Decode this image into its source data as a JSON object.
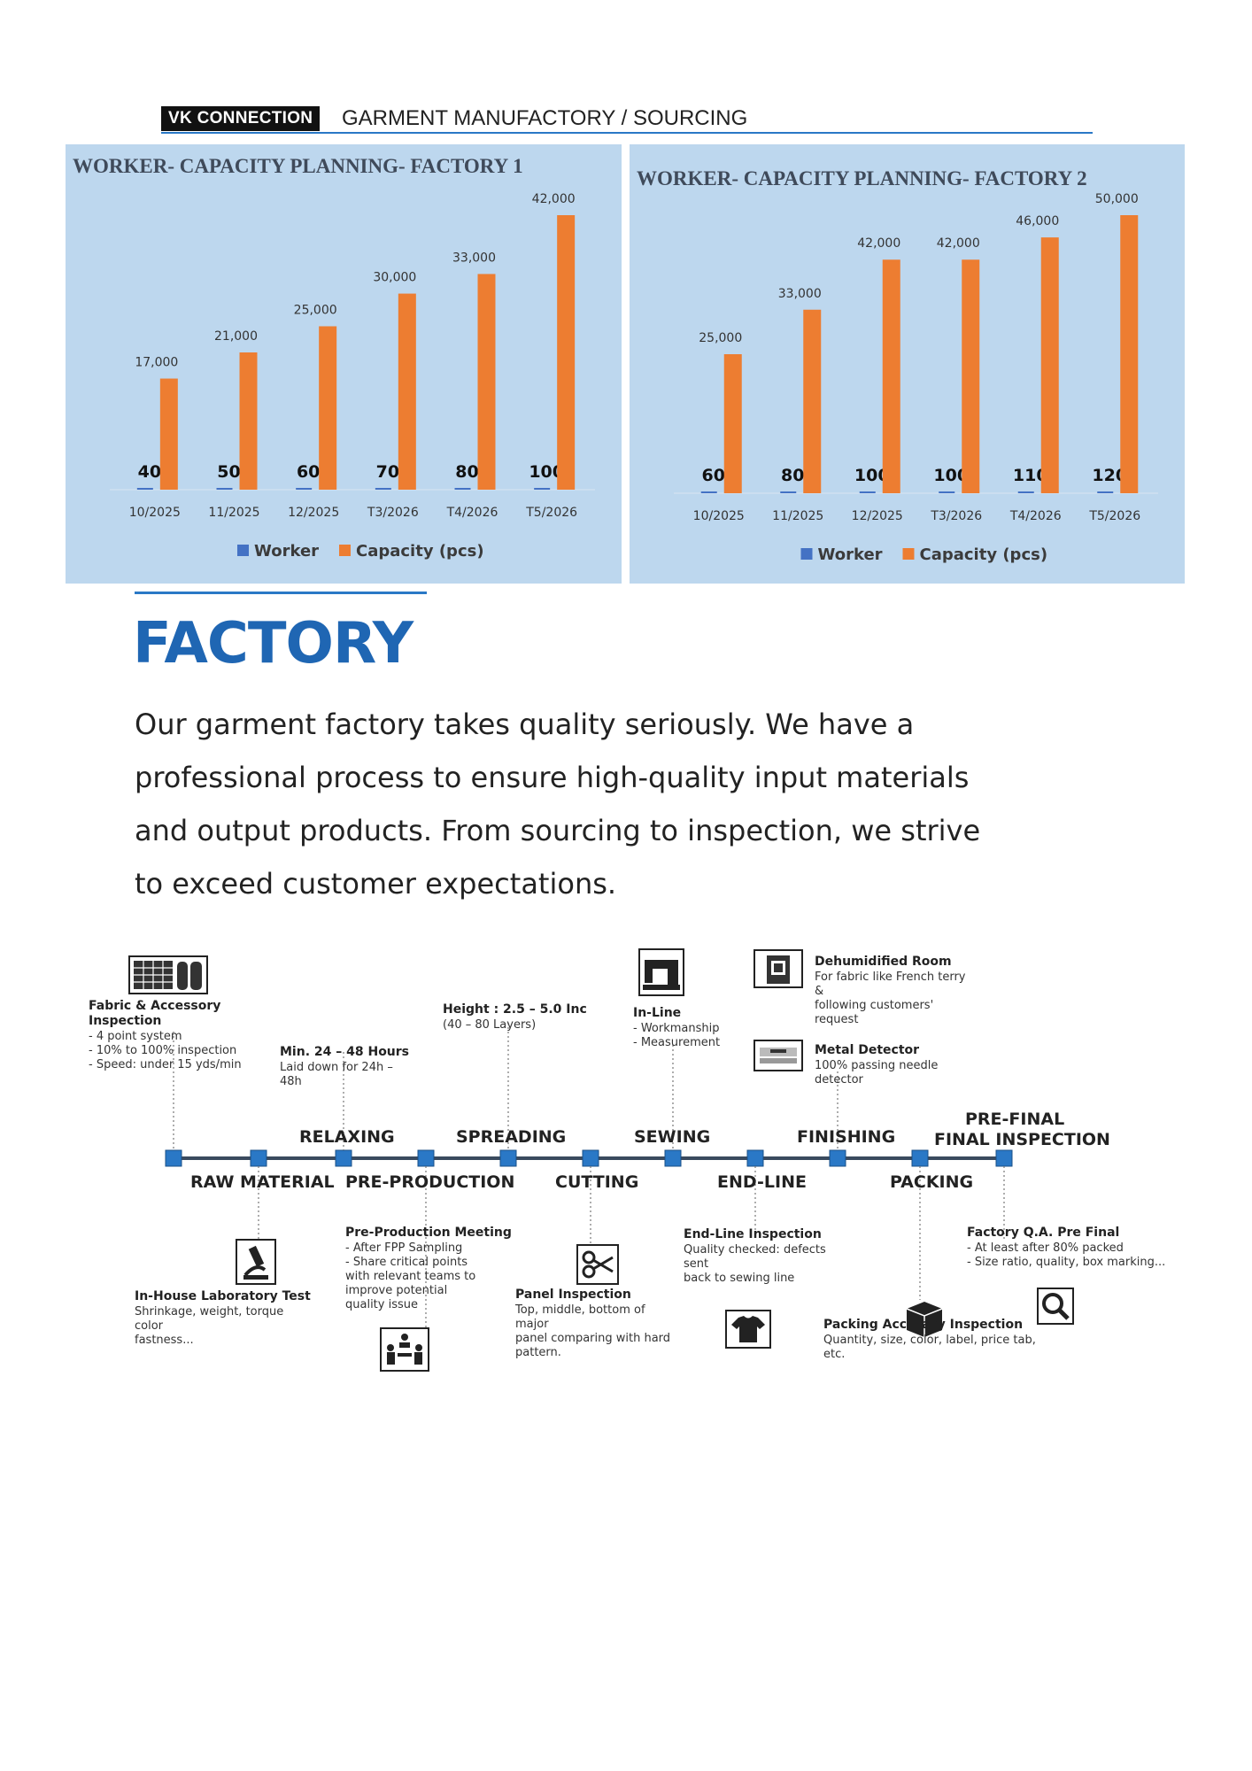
{
  "header": {
    "brand": "VK CONNECTION",
    "subtitle": "GARMENT MANUFACTORY / SOURCING"
  },
  "chart_data": [
    {
      "type": "bar",
      "title": "WORKER- CAPACITY PLANNING- FACTORY 1",
      "categories": [
        "10/2025",
        "11/2025",
        "12/2025",
        "T3/2026",
        "T4/2026",
        "T5/2026"
      ],
      "series": [
        {
          "name": "Worker",
          "values": [
            40,
            50,
            60,
            70,
            80,
            100
          ],
          "labels": [
            "40",
            "50",
            "60",
            "70",
            "80",
            "100"
          ],
          "color": "#4472c4"
        },
        {
          "name": "Capacity (pcs)",
          "values": [
            17000,
            21000,
            25000,
            30000,
            33000,
            42000
          ],
          "labels": [
            "17,000",
            "21,000",
            "25,000",
            "30,000",
            "33,000",
            "42,000"
          ],
          "color": "#ed7d31"
        }
      ],
      "ylim": [
        0,
        42000
      ],
      "legend": "bottom",
      "grid": false
    },
    {
      "type": "bar",
      "title": "WORKER- CAPACITY PLANNING- FACTORY 2",
      "categories": [
        "10/2025",
        "11/2025",
        "12/2025",
        "T3/2026",
        "T4/2026",
        "T5/2026"
      ],
      "series": [
        {
          "name": "Worker",
          "values": [
            60,
            80,
            100,
            100,
            110,
            120
          ],
          "labels": [
            "60",
            "80",
            "100",
            "100",
            "110",
            "120"
          ],
          "color": "#4472c4"
        },
        {
          "name": "Capacity (pcs)",
          "values": [
            25000,
            33000,
            42000,
            42000,
            46000,
            50000
          ],
          "labels": [
            "25,000",
            "33,000",
            "42,000",
            "42,000",
            "46,000",
            "50,000"
          ],
          "color": "#ed7d31"
        }
      ],
      "ylim": [
        0,
        50000
      ],
      "legend": "bottom",
      "grid": false
    }
  ],
  "factory": {
    "heading": "FACTORY",
    "intro_lines": [
      "Our garment factory takes quality seriously. We have a",
      "professional process to ensure high-quality input materials",
      "and output products. From sourcing to inspection, we strive",
      "to exceed customer expectations."
    ]
  },
  "process": {
    "stages_above": [
      {
        "label": "RELAXING"
      },
      {
        "label": "SPREADING"
      },
      {
        "label": "SEWING"
      },
      {
        "label": "FINISHING"
      },
      {
        "label": "PRE-FINAL"
      }
    ],
    "stages_below": [
      {
        "label": "RAW MATERIAL"
      },
      {
        "label": "PRE-PRODUCTION"
      },
      {
        "label": "CUTTING"
      },
      {
        "label": "END-LINE"
      },
      {
        "label": "PACKING"
      }
    ],
    "final_label": "FINAL INSPECTION",
    "notes": [
      {
        "id": "fabric",
        "title": [
          "Fabric & Accessory",
          "Inspection"
        ],
        "lines": [
          "- 4 point system",
          "- 10% to 100% inspection",
          "- Speed: under 15 yds/min"
        ],
        "icon": "fabric-rolls-icon"
      },
      {
        "id": "relax",
        "title": [
          "Min. 24 – 48 Hours"
        ],
        "lines": [
          "Laid down for 24h –",
          "48h"
        ]
      },
      {
        "id": "spread",
        "title": [
          "Height : 2.5 – 5.0 Inc"
        ],
        "lines": [
          "(40 – 80 Layers)"
        ]
      },
      {
        "id": "inline",
        "title": [
          "In-Line"
        ],
        "lines": [
          "- Workmanship",
          "- Measurement"
        ],
        "icon": "sewing-machine-icon"
      },
      {
        "id": "dehum",
        "title": [
          "Dehumidified Room"
        ],
        "lines": [
          "For fabric like French terry",
          "&",
          "following customers'",
          "request"
        ],
        "icon": "dehumidifier-icon"
      },
      {
        "id": "metal",
        "title": [
          "Metal Detector"
        ],
        "lines": [
          "100% passing needle",
          "detector"
        ],
        "icon": "metal-detector-icon"
      },
      {
        "id": "lab",
        "title": [
          "In-House Laboratory Test"
        ],
        "lines": [
          "Shrinkage, weight, torque",
          "color",
          "fastness..."
        ],
        "icon": "microscope-icon"
      },
      {
        "id": "ppm",
        "title": [
          "Pre-Production Meeting"
        ],
        "lines": [
          "- After FPP Sampling",
          "- Share   critical   points",
          "with   relevant  teams  to",
          "improve           potential",
          "quality issue"
        ],
        "icon": "meeting-icon"
      },
      {
        "id": "panel",
        "title": [
          "Panel Inspection"
        ],
        "lines": [
          "Top, middle, bottom of",
          "major",
          "panel comparing with hard",
          "pattern."
        ],
        "icon": "scissors-icon"
      },
      {
        "id": "endline",
        "title": [
          "End-Line Inspection"
        ],
        "lines": [
          "Quality checked: defects",
          "sent",
          "back to sewing line"
        ],
        "icon": "tshirt-icon"
      },
      {
        "id": "packing",
        "title": [
          "Packing Accuracy Inspection"
        ],
        "lines": [
          "Quantity, size, color, label, price tab,",
          "etc."
        ],
        "icon": "box-icon"
      },
      {
        "id": "qa",
        "title": [
          "Factory Q.A. Pre Final"
        ],
        "lines": [
          "- At least after 80% packed",
          "- Size ratio, quality, box marking..."
        ],
        "icon": "magnifier-icon"
      }
    ]
  }
}
